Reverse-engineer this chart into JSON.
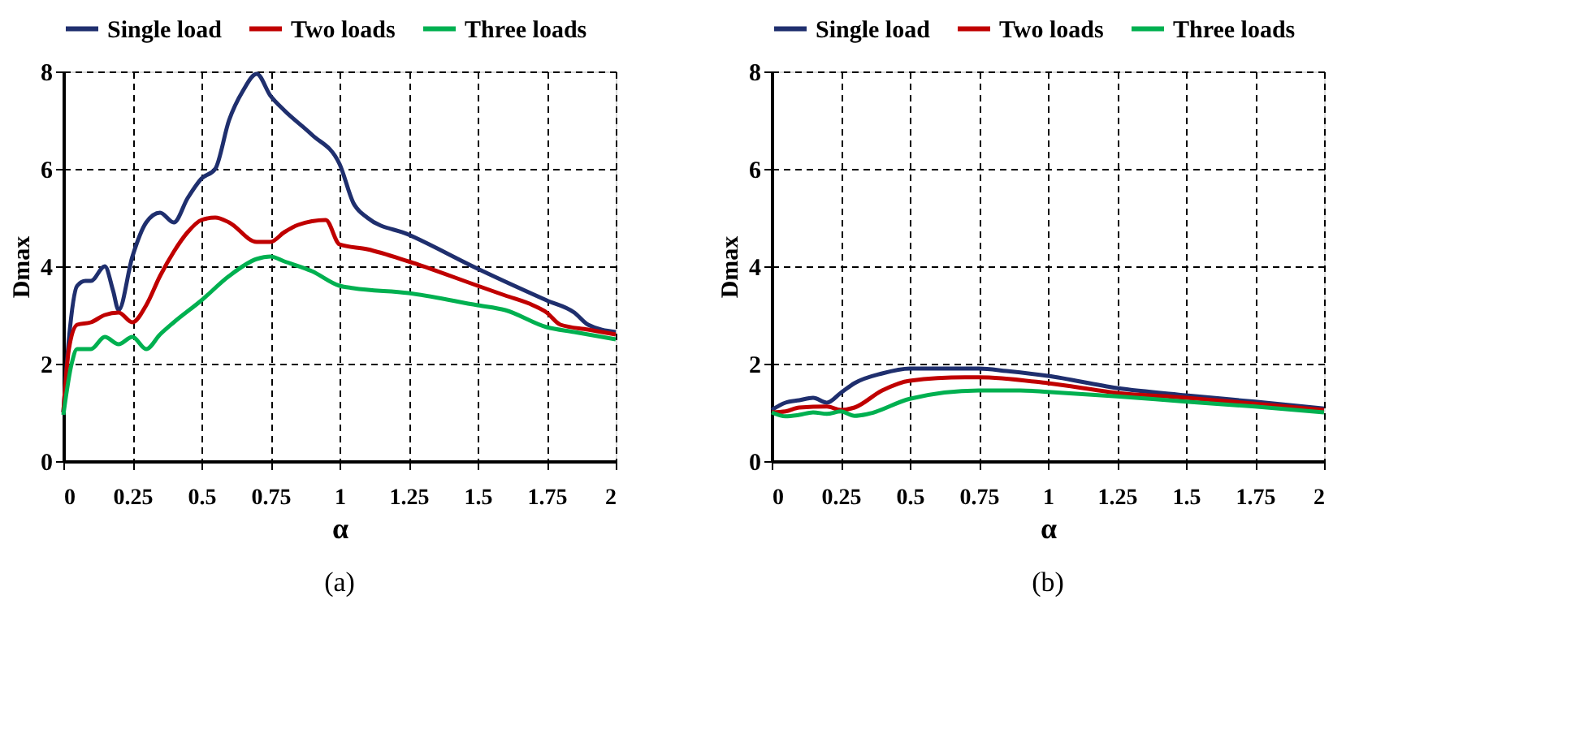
{
  "chart_data": [
    {
      "type": "line",
      "xlabel": "α",
      "ylabel": "Dmax",
      "xlim": [
        0,
        2
      ],
      "ylim": [
        0,
        8
      ],
      "xticks": [
        0,
        0.25,
        0.5,
        0.75,
        1,
        1.25,
        1.5,
        1.75,
        2
      ],
      "yticks": [
        0,
        2,
        4,
        6,
        8
      ],
      "grid": true,
      "legend": "top",
      "line_style": "solid",
      "annotations": [
        "(a)"
      ],
      "series": [
        {
          "name": "Single load",
          "color": "#1f2f6e",
          "x": [
            0,
            0.02,
            0.05,
            0.08,
            0.1,
            0.15,
            0.18,
            0.2,
            0.25,
            0.3,
            0.35,
            0.4,
            0.45,
            0.5,
            0.55,
            0.6,
            0.65,
            0.7,
            0.75,
            0.8,
            0.9,
            1.0,
            1.05,
            1.1,
            1.25,
            1.5,
            1.75,
            1.85,
            1.9,
            2.0
          ],
          "values": [
            1.0,
            2.5,
            3.6,
            3.7,
            3.7,
            4.0,
            3.5,
            3.1,
            4.2,
            4.9,
            5.1,
            4.9,
            5.4,
            5.8,
            6.0,
            7.0,
            7.6,
            7.95,
            7.5,
            7.2,
            6.7,
            6.1,
            5.3,
            5.0,
            4.65,
            3.95,
            3.3,
            3.05,
            2.8,
            2.65
          ]
        },
        {
          "name": "Two loads",
          "color": "#c00000",
          "x": [
            0,
            0.02,
            0.05,
            0.1,
            0.15,
            0.2,
            0.25,
            0.3,
            0.35,
            0.4,
            0.45,
            0.5,
            0.55,
            0.6,
            0.7,
            0.75,
            0.8,
            0.85,
            0.95,
            1.0,
            1.1,
            1.25,
            1.5,
            1.6,
            1.7,
            1.75,
            1.8,
            1.9,
            2.0
          ],
          "values": [
            1.0,
            2.3,
            2.8,
            2.85,
            3.0,
            3.05,
            2.85,
            3.2,
            3.8,
            4.3,
            4.7,
            4.95,
            5.0,
            4.9,
            4.5,
            4.5,
            4.7,
            4.85,
            4.95,
            4.45,
            4.35,
            4.1,
            3.6,
            3.4,
            3.2,
            3.05,
            2.8,
            2.7,
            2.6
          ]
        },
        {
          "name": "Three loads",
          "color": "#00b050",
          "x": [
            0,
            0.03,
            0.05,
            0.1,
            0.15,
            0.2,
            0.25,
            0.3,
            0.35,
            0.4,
            0.5,
            0.6,
            0.7,
            0.75,
            0.8,
            0.9,
            1.0,
            1.05,
            1.25,
            1.5,
            1.6,
            1.75,
            1.85,
            2.0
          ],
          "values": [
            0.95,
            2.0,
            2.3,
            2.3,
            2.55,
            2.4,
            2.55,
            2.3,
            2.6,
            2.85,
            3.3,
            3.8,
            4.15,
            4.2,
            4.1,
            3.9,
            3.6,
            3.55,
            3.45,
            3.2,
            3.1,
            2.75,
            2.65,
            2.5
          ]
        }
      ]
    },
    {
      "type": "line",
      "xlabel": "α",
      "ylabel": "Dmax",
      "xlim": [
        0,
        2
      ],
      "ylim": [
        0,
        8
      ],
      "xticks": [
        0,
        0.25,
        0.5,
        0.75,
        1,
        1.25,
        1.5,
        1.75,
        2
      ],
      "yticks": [
        0,
        2,
        4,
        6,
        8
      ],
      "grid": true,
      "legend": "top",
      "line_style": "solid",
      "annotations": [
        "(b)"
      ],
      "series": [
        {
          "name": "Single load",
          "color": "#1f2f6e",
          "x": [
            0,
            0.05,
            0.1,
            0.15,
            0.2,
            0.25,
            0.3,
            0.4,
            0.5,
            0.75,
            0.85,
            1.0,
            1.25,
            1.5,
            1.75,
            2.0
          ],
          "values": [
            1.05,
            1.2,
            1.25,
            1.3,
            1.2,
            1.4,
            1.6,
            1.8,
            1.9,
            1.9,
            1.85,
            1.75,
            1.5,
            1.35,
            1.22,
            1.08
          ]
        },
        {
          "name": "Two loads",
          "color": "#c00000",
          "x": [
            0,
            0.05,
            0.1,
            0.2,
            0.25,
            0.3,
            0.4,
            0.5,
            0.7,
            0.75,
            1.0,
            1.25,
            1.5,
            1.75,
            2.0
          ],
          "values": [
            1.0,
            1.02,
            1.1,
            1.12,
            1.05,
            1.1,
            1.45,
            1.65,
            1.72,
            1.72,
            1.6,
            1.4,
            1.3,
            1.18,
            1.05
          ]
        },
        {
          "name": "Three loads",
          "color": "#00b050",
          "x": [
            0,
            0.05,
            0.1,
            0.15,
            0.2,
            0.25,
            0.3,
            0.35,
            0.5,
            0.75,
            0.9,
            1.0,
            1.25,
            1.5,
            1.75,
            2.0
          ],
          "values": [
            1.0,
            0.92,
            0.95,
            1.0,
            0.97,
            1.02,
            0.93,
            0.97,
            1.28,
            1.45,
            1.45,
            1.42,
            1.33,
            1.22,
            1.12,
            1.0
          ]
        }
      ]
    }
  ]
}
